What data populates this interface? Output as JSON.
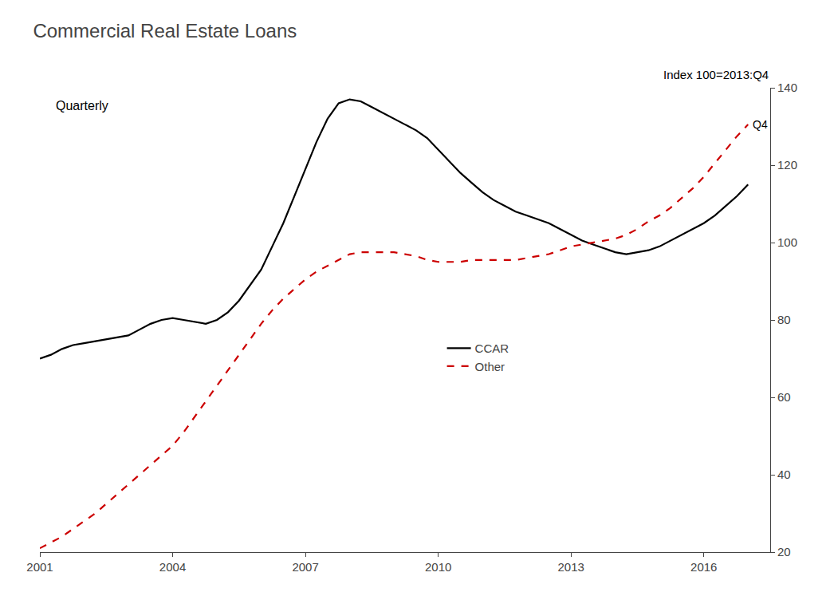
{
  "chart_data": {
    "type": "line",
    "title": "Commercial Real Estate Loans",
    "subtitle": "Index 100=2013:Q4",
    "annotations": [
      "Quarterly",
      "Q4"
    ],
    "x": [
      2001.0,
      2001.25,
      2001.5,
      2001.75,
      2002.0,
      2002.25,
      2002.5,
      2002.75,
      2003.0,
      2003.25,
      2003.5,
      2003.75,
      2004.0,
      2004.25,
      2004.5,
      2004.75,
      2005.0,
      2005.25,
      2005.5,
      2005.75,
      2006.0,
      2006.25,
      2006.5,
      2006.75,
      2007.0,
      2007.25,
      2007.5,
      2007.75,
      2008.0,
      2008.25,
      2008.5,
      2008.75,
      2009.0,
      2009.25,
      2009.5,
      2009.75,
      2010.0,
      2010.25,
      2010.5,
      2010.75,
      2011.0,
      2011.25,
      2011.5,
      2011.75,
      2012.0,
      2012.25,
      2012.5,
      2012.75,
      2013.0,
      2013.25,
      2013.5,
      2013.75,
      2014.0,
      2014.25,
      2014.5,
      2014.75,
      2015.0,
      2015.25,
      2015.5,
      2015.75,
      2016.0,
      2016.25,
      2016.5,
      2016.75,
      2017.0
    ],
    "series": [
      {
        "name": "CCAR",
        "color": "#000000",
        "line_style": "solid",
        "values": [
          70.0,
          71.0,
          72.5,
          73.5,
          74.0,
          74.5,
          75.0,
          75.5,
          76.0,
          77.5,
          79.0,
          80.0,
          80.5,
          80.0,
          79.5,
          79.0,
          80.0,
          82.0,
          85.0,
          89.0,
          93.0,
          99.0,
          105.0,
          112.0,
          119.0,
          126.0,
          132.0,
          136.0,
          137.0,
          136.5,
          135.0,
          133.5,
          132.0,
          130.5,
          129.0,
          127.0,
          124.0,
          121.0,
          118.0,
          115.5,
          113.0,
          111.0,
          109.5,
          108.0,
          107.0,
          106.0,
          105.0,
          103.5,
          102.0,
          100.5,
          99.5,
          98.5,
          97.5,
          97.0,
          97.5,
          98.0,
          99.0,
          100.5,
          102.0,
          103.5,
          105.0,
          107.0,
          109.5,
          112.0,
          115.0
        ]
      },
      {
        "name": "Other",
        "color": "#cc0000",
        "line_style": "dashed",
        "values": [
          21.0,
          22.5,
          24.0,
          26.0,
          28.0,
          30.0,
          32.5,
          35.0,
          37.5,
          40.0,
          42.5,
          45.0,
          47.5,
          51.0,
          55.0,
          59.0,
          63.0,
          67.0,
          71.0,
          75.0,
          79.0,
          82.5,
          85.5,
          88.0,
          90.5,
          92.5,
          94.0,
          95.5,
          97.0,
          97.5,
          97.5,
          97.5,
          97.5,
          97.0,
          96.5,
          95.5,
          95.0,
          95.0,
          95.0,
          95.5,
          95.5,
          95.5,
          95.5,
          95.5,
          96.0,
          96.5,
          97.0,
          98.0,
          99.0,
          99.5,
          100.0,
          100.5,
          101.0,
          102.0,
          103.5,
          105.5,
          107.0,
          109.0,
          111.5,
          114.0,
          117.0,
          120.5,
          124.0,
          127.5,
          130.5
        ]
      }
    ],
    "xlim": [
      2001.0,
      2017.5
    ],
    "xticks": [
      2001,
      2004,
      2007,
      2010,
      2013,
      2016
    ],
    "ylim": [
      20,
      140
    ],
    "yticks": [
      20,
      40,
      60,
      80,
      100,
      120,
      140
    ],
    "grid": false,
    "legend": "center"
  }
}
